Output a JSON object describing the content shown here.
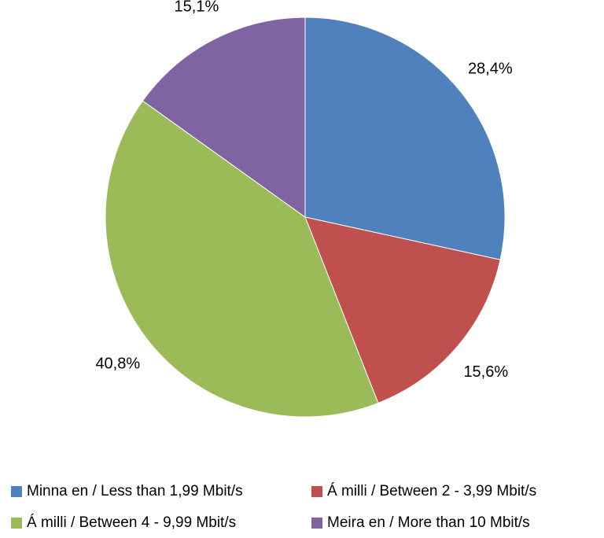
{
  "chart_data": {
    "type": "pie",
    "title": "",
    "legend_position": "bottom",
    "start_angle_deg": 0,
    "direction": "clockwise",
    "slices": [
      {
        "label": "Minna en / Less than 1,99 Mbit/s",
        "value": 28.4,
        "value_label": "28,4%",
        "color": "#4F81BD"
      },
      {
        "label": "Á milli / Between 2 - 3,99 Mbit/s",
        "value": 15.6,
        "value_label": "15,6%",
        "color": "#C0504D"
      },
      {
        "label": "Á milli / Between 4 - 9,99 Mbit/s",
        "value": 40.8,
        "value_label": "40,8%",
        "color": "#9BBB59"
      },
      {
        "label": "Meira en / More than 10 Mbit/s",
        "value": 15.1,
        "value_label": "15,1%",
        "color": "#8064A2"
      }
    ]
  }
}
